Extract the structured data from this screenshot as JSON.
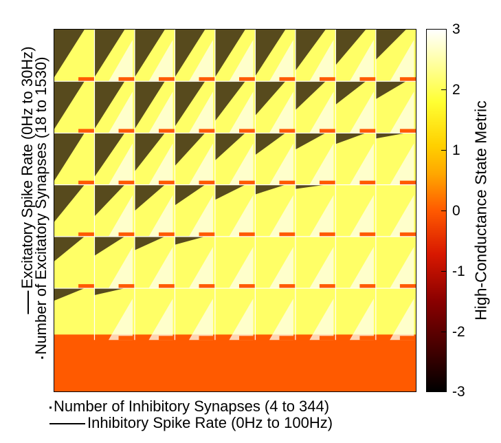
{
  "chart_data": {
    "type": "heatmap",
    "xlabel": "Number of Inhibitory Synapses (4 to 344)",
    "xlabel_nested": "Inhibitory Spike Rate (0Hz to 100Hz)",
    "ylabel": "Excitatory Spike Rate (0Hz to 30Hz)",
    "ylabel_nested": "Number of Excitatory Synapses (18 to 1530)",
    "colorbar_label": "High-Conductance State Metric",
    "colorbar_ticks": [
      "3",
      "2",
      "1",
      "0",
      "-1",
      "-2",
      "-3"
    ],
    "clim": [
      -3,
      3
    ],
    "blocks_x": 9,
    "blocks_y": 6,
    "colors": {
      "high": "#ffff66",
      "saturated": "#ffffee",
      "low": "#ff5a00",
      "noise": "#3a2a10"
    }
  }
}
